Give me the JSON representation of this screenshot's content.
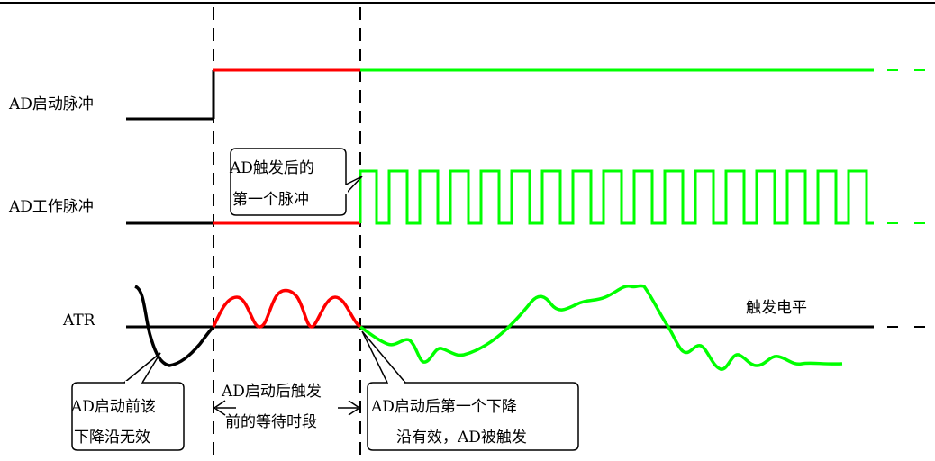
{
  "signals": {
    "start_pulse": "AD启动脉冲",
    "work_pulse": "AD工作脉冲",
    "atr": "ATR",
    "trigger_level": "触发电平"
  },
  "callouts": {
    "first_pulse": [
      "AD触发后的",
      "第一个脉冲"
    ],
    "invalid_edge": [
      "AD启动前该",
      "下降沿无效"
    ],
    "wait_period": [
      "AD启动后触发",
      "前的等待时段"
    ],
    "valid_edge": [
      "AD启动后第一个下降",
      "沿有效，AD被触发"
    ]
  },
  "colors": {
    "before_trigger": "#ff0000",
    "after_trigger": "#00ff00",
    "baseline": "#000000"
  }
}
